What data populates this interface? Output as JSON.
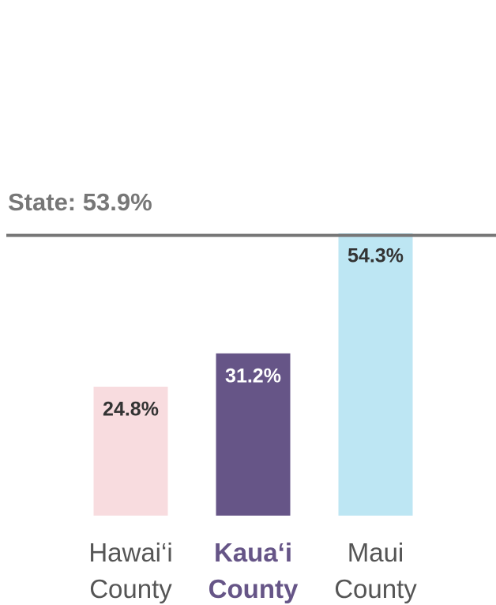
{
  "chart_data": {
    "type": "bar",
    "categories": [
      "Hawai‘i County",
      "Kaua‘i County",
      "Maui County"
    ],
    "values": [
      24.8,
      31.2,
      54.3
    ],
    "value_labels": [
      "24.8%",
      "31.2%",
      "54.3%"
    ],
    "colors": [
      "#f8dcdf",
      "#665587",
      "#bde6f3"
    ],
    "highlight_category": "Kaua‘i County",
    "reference": {
      "label": "State: 53.9%",
      "value": 53.9,
      "color": "#777777"
    },
    "ylim": [
      0,
      60
    ]
  }
}
